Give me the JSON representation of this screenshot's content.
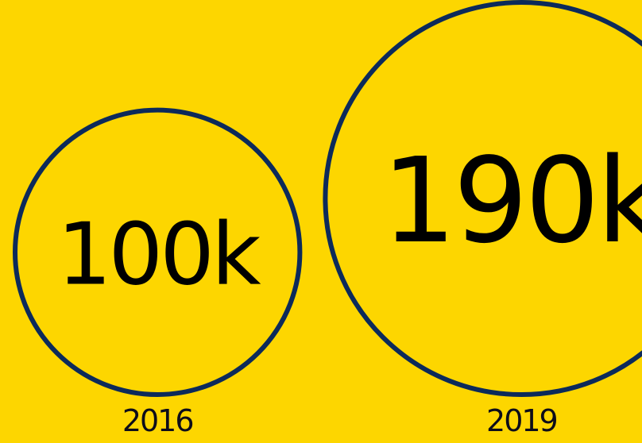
{
  "chart_data": {
    "type": "bubble",
    "categories": [
      "2016",
      "2019"
    ],
    "values": [
      100000,
      190000
    ],
    "value_labels": [
      "100k",
      "190k"
    ]
  },
  "colors": {
    "background": "#FDD600",
    "circle_stroke": "#0C2A5A",
    "value_text": "#000000",
    "label_text": "#0D0D1A"
  }
}
